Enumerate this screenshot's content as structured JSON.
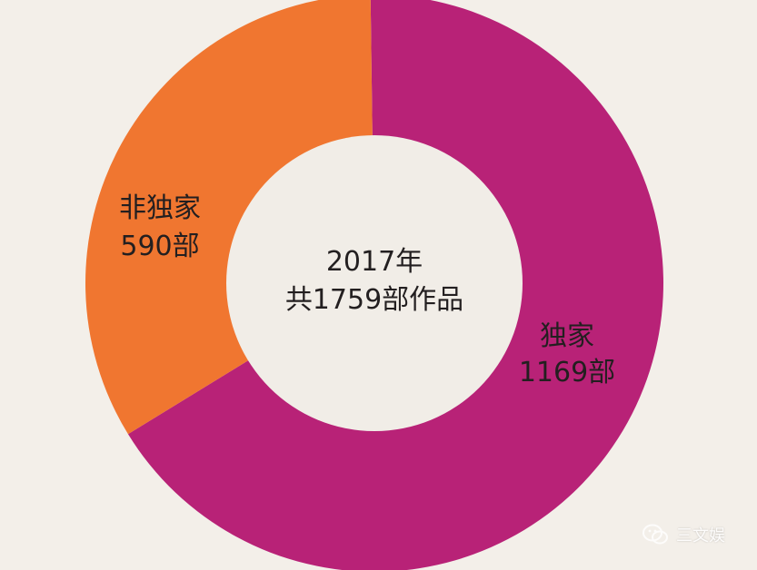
{
  "chart_data": {
    "type": "pie",
    "donut": true,
    "slices": [
      {
        "label": "独家",
        "value": 1169,
        "value_text": "1169部",
        "color": "#b82277"
      },
      {
        "label": "非独家",
        "value": 590,
        "value_text": "590部",
        "color": "#f07630"
      }
    ],
    "center_text": [
      "2017年",
      "共1759部作品"
    ],
    "legend": "none"
  },
  "colors": {
    "background": "#f3efe9",
    "center_fill": "#f1ede7"
  },
  "watermark": {
    "icon": "wechat-icon",
    "text": "三文娱"
  }
}
